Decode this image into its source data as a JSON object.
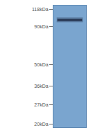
{
  "chart_data": {
    "type": "blot",
    "values": [
      100
    ],
    "color": "#22304a",
    "log": "y",
    "ylim": [
      19,
      125
    ],
    "yticks": [
      {
        "value": 118,
        "label": "118kDa"
      },
      {
        "value": 90,
        "label": "90kDa"
      },
      {
        "value": 50,
        "label": "50kDa"
      },
      {
        "value": 36,
        "label": "36kDa"
      },
      {
        "value": 27,
        "label": "27kDa"
      },
      {
        "value": 20,
        "label": "20kDa"
      }
    ]
  }
}
